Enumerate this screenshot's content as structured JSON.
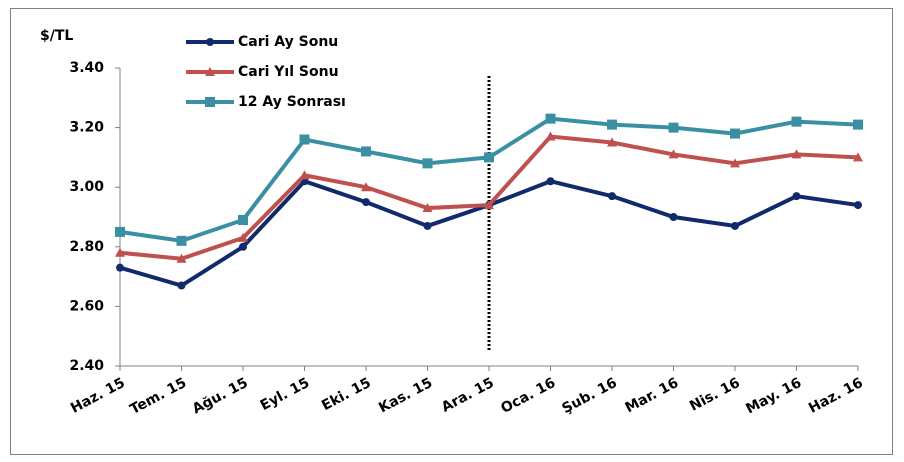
{
  "chart_data": {
    "type": "line",
    "y_label": "$/TL",
    "categories": [
      "Haz. 15",
      "Tem. 15",
      "Ağu. 15",
      "Eyl. 15",
      "Eki. 15",
      "Kas. 15",
      "Ara. 15",
      "Oca. 16",
      "Şub. 16",
      "Mar. 16",
      "Nis. 16",
      "May. 16",
      "Haz. 16"
    ],
    "series": [
      {
        "name": "Cari Ay Sonu",
        "color": "#102a6b",
        "marker": "circle",
        "values": [
          2.73,
          2.67,
          2.8,
          3.02,
          2.95,
          2.87,
          2.94,
          3.02,
          2.97,
          2.9,
          2.87,
          2.97,
          2.94
        ]
      },
      {
        "name": "Cari Yıl Sonu",
        "color": "#c0504d",
        "marker": "triangle",
        "values": [
          2.78,
          2.76,
          2.83,
          3.04,
          3.0,
          2.93,
          2.94,
          3.17,
          3.15,
          3.11,
          3.08,
          3.11,
          3.1
        ]
      },
      {
        "name": "12 Ay Sonrası",
        "color": "#3a8fa3",
        "marker": "square",
        "values": [
          2.85,
          2.82,
          2.89,
          3.16,
          3.12,
          3.08,
          3.1,
          3.23,
          3.21,
          3.2,
          3.18,
          3.22,
          3.21
        ]
      }
    ],
    "ylim": [
      2.4,
      3.4
    ],
    "yticks": [
      {
        "value": 2.4,
        "label": "2.40"
      },
      {
        "value": 2.6,
        "label": "2.60"
      },
      {
        "value": 2.8,
        "label": "2.80"
      },
      {
        "value": 3.0,
        "label": "3.00"
      },
      {
        "value": 3.2,
        "label": "3.20"
      },
      {
        "value": 3.4,
        "label": "3.40"
      }
    ],
    "grid": false
  }
}
